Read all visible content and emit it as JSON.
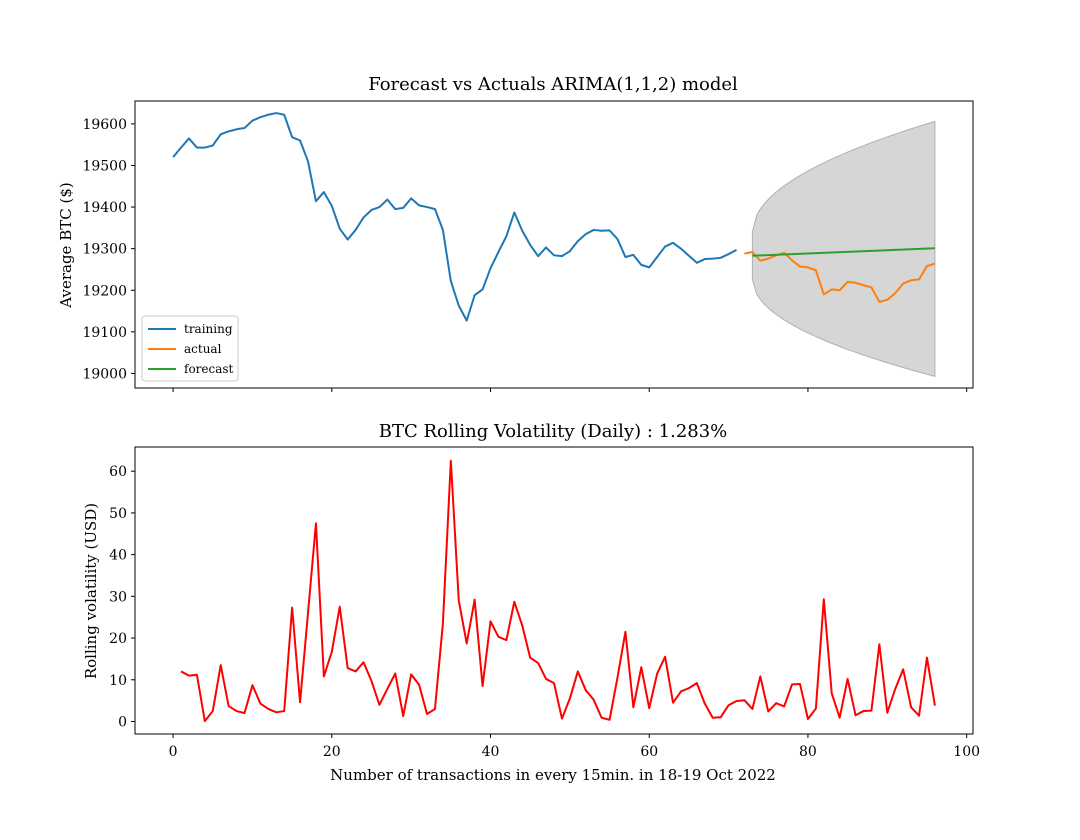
{
  "chart_data": [
    {
      "type": "line",
      "title": "Forecast vs Actuals ARIMA(1,1,2) model",
      "xlabel": "",
      "ylabel": "Average BTC ($)",
      "xlim": [
        -4.8,
        100.8
      ],
      "ylim": [
        18965,
        19655
      ],
      "yticks": [
        19000,
        19100,
        19200,
        19300,
        19400,
        19500,
        19600
      ],
      "xticks": [
        0,
        20,
        40,
        60,
        80,
        100
      ],
      "grid": false,
      "legend": "lower-left",
      "series": [
        {
          "name": "training",
          "color": "#1f77b4",
          "x": [
            0,
            1,
            2,
            3,
            4,
            5,
            6,
            7,
            8,
            9,
            10,
            11,
            12,
            13,
            14,
            15,
            16,
            17,
            18,
            19,
            20,
            21,
            22,
            23,
            24,
            25,
            26,
            27,
            28,
            29,
            30,
            31,
            32,
            33,
            34,
            35,
            36,
            37,
            38,
            39,
            40,
            41,
            42,
            43,
            44,
            45,
            46,
            47,
            48,
            49,
            50,
            51,
            52,
            53,
            54,
            55,
            56,
            57,
            58,
            59,
            60,
            61,
            62,
            63,
            64,
            65,
            66,
            67,
            68,
            69,
            70,
            71
          ],
          "y": [
            19520,
            19543,
            19565,
            19543,
            19543,
            19548,
            19575,
            19582,
            19587,
            19590,
            19608,
            19616,
            19622,
            19626,
            19622,
            19568,
            19560,
            19510,
            19414,
            19436,
            19403,
            19348,
            19322,
            19345,
            19375,
            19393,
            19400,
            19418,
            19395,
            19398,
            19421,
            19404,
            19400,
            19395,
            19345,
            19222,
            19163,
            19127,
            19188,
            19202,
            19253,
            19292,
            19330,
            19387,
            19343,
            19309,
            19282,
            19303,
            19284,
            19282,
            19294,
            19318,
            19335,
            19345,
            19343,
            19344,
            19323,
            19280,
            19285,
            19261,
            19255,
            19280,
            19305,
            19314,
            19300,
            19283,
            19266,
            19275,
            19276,
            19278,
            19287,
            19297
          ]
        },
        {
          "name": "actual",
          "color": "#ff7f0e",
          "x": [
            72,
            73,
            74,
            75,
            76,
            77,
            78,
            79,
            80,
            81,
            82,
            83,
            84,
            85,
            86,
            87,
            88,
            89,
            90,
            91,
            92,
            93,
            94,
            95,
            96
          ],
          "y": [
            19288,
            19292,
            19271,
            19276,
            19284,
            19290,
            19272,
            19257,
            19255,
            19248,
            19190,
            19202,
            19200,
            19220,
            19218,
            19212,
            19207,
            19172,
            19177,
            19193,
            19216,
            19224,
            19226,
            19258,
            19264
          ]
        },
        {
          "name": "forecast",
          "color": "#2ca02c",
          "x": [
            73,
            96
          ],
          "y": [
            19283,
            19301
          ]
        }
      ],
      "confidence_band": {
        "color": "#c8c8c8",
        "x_start": 73,
        "x_end": 96,
        "lower_start": 19226,
        "lower_end": 18993,
        "upper_start": 19340,
        "upper_end": 19606
      }
    },
    {
      "type": "line",
      "title": "BTC Rolling Volatility (Daily) : 1.283%",
      "xlabel": "Number of transactions in every 15min. in 18-19 Oct 2022",
      "ylabel": "Rolling volatility (USD)",
      "xlim": [
        -4.8,
        100.8
      ],
      "ylim": [
        -3,
        65.8
      ],
      "yticks": [
        0,
        10,
        20,
        30,
        40,
        50,
        60
      ],
      "xticks": [
        0,
        20,
        40,
        60,
        80,
        100
      ],
      "grid": false,
      "series": [
        {
          "color": "#ff0000",
          "x": [
            1,
            2,
            3,
            4,
            5,
            6,
            7,
            8,
            9,
            10,
            11,
            12,
            13,
            14,
            15,
            16,
            17,
            18,
            19,
            20,
            21,
            22,
            23,
            24,
            25,
            26,
            27,
            28,
            29,
            30,
            31,
            32,
            33,
            34,
            35,
            36,
            37,
            38,
            39,
            40,
            41,
            42,
            43,
            44,
            45,
            46,
            47,
            48,
            49,
            50,
            51,
            52,
            53,
            54,
            55,
            56,
            57,
            58,
            59,
            60,
            61,
            62,
            63,
            64,
            65,
            66,
            67,
            68,
            69,
            70,
            71,
            72,
            73,
            74,
            75,
            76,
            77,
            78,
            79,
            80,
            81,
            82,
            83,
            84,
            85,
            86,
            87,
            88,
            89,
            90,
            91,
            92,
            93,
            94,
            95,
            96
          ],
          "y": [
            12,
            11,
            11.2,
            0.1,
            2.5,
            13.5,
            3.7,
            2.5,
            2,
            8.7,
            4.3,
            3,
            2.2,
            2.5,
            27.3,
            4.6,
            26,
            47.5,
            10.8,
            16.7,
            27.5,
            12.8,
            12,
            14.2,
            9.7,
            4,
            7.8,
            11.5,
            1.3,
            11.3,
            8.8,
            1.8,
            3,
            23.5,
            62.5,
            29,
            18.7,
            29.2,
            8.5,
            24,
            20.3,
            19.5,
            28.7,
            23,
            15.3,
            14,
            10.2,
            9.2,
            0.7,
            5.5,
            12,
            7.5,
            5.2,
            0.9,
            0.4,
            10.5,
            21.5,
            3.4,
            13,
            3.2,
            11.5,
            15.5,
            4.5,
            7.2,
            8,
            9.2,
            4.3,
            0.9,
            1,
            3.9,
            4.9,
            5.1,
            3,
            10.8,
            2.4,
            4.4,
            3.6,
            8.9,
            9,
            0.6,
            3.1,
            29.3,
            6.7,
            0.9,
            10.2,
            1.5,
            2.5,
            2.6,
            18.5,
            2.1,
            7.8,
            12.5,
            3.4,
            1.4,
            15.3,
            3.8
          ]
        }
      ]
    }
  ]
}
